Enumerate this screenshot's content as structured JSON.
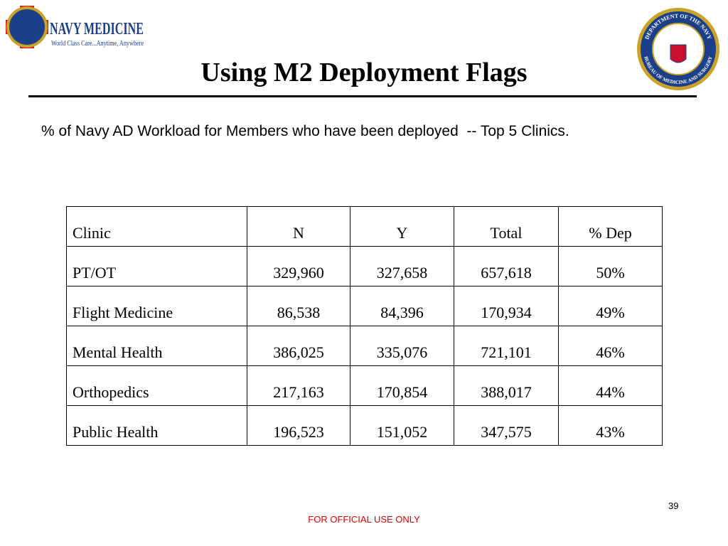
{
  "header": {
    "title": "Using M2 Deployment Flags",
    "logo_left": {
      "name": "NAVY MEDICINE",
      "tagline": "World Class Care...Anytime, Anywhere"
    },
    "logo_right": {
      "top": "DEPARTMENT OF THE NAVY",
      "bottom": "BUREAU OF MEDICINE AND SURGERY"
    }
  },
  "subtitle": "% of Navy AD Workload for Members who have been deployed  -- Top 5 Clinics.",
  "table": {
    "columns": [
      "Clinic",
      "N",
      "Y",
      "Total",
      "% Dep"
    ],
    "rows": [
      [
        "PT/OT",
        "329,960",
        "327,658",
        "657,618",
        "50%"
      ],
      [
        "Flight Medicine",
        "86,538",
        "84,396",
        "170,934",
        "49%"
      ],
      [
        "Mental Health",
        "386,025",
        "335,076",
        "721,101",
        "46%"
      ],
      [
        "Orthopedics",
        "217,163",
        "170,854",
        "388,017",
        "44%"
      ],
      [
        "Public Health",
        "196,523",
        "151,052",
        "347,575",
        "43%"
      ]
    ]
  },
  "page_number": "39",
  "footer": "FOR OFFICIAL USE ONLY"
}
